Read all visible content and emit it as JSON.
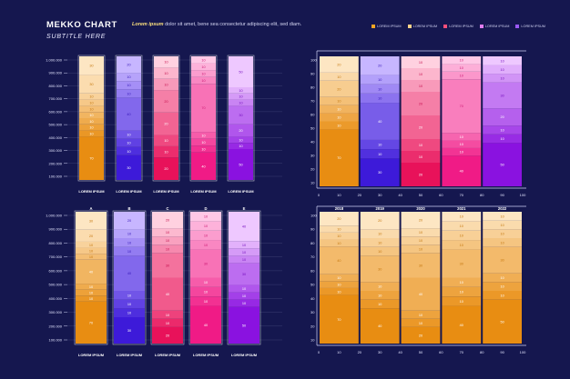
{
  "header": {
    "title": "MEKKO CHART",
    "subtitle": "SUBTITLE HERE",
    "desc_lead": "Lorem ipsum",
    "desc_rest": "dolor sit amet, bene sea consectetur adipiscing elit, sed diam."
  },
  "legend": [
    {
      "label": "LOREM IPSUM",
      "color": "#f5a623"
    },
    {
      "label": "LOREM IPSUM",
      "color": "#fcd38a"
    },
    {
      "label": "LOREM IPSUM",
      "color": "#ff4f7b"
    },
    {
      "label": "LOREM IPSUM",
      "color": "#e07cf0"
    },
    {
      "label": "LOREM IPSUM",
      "color": "#9b59f6"
    }
  ],
  "colors": {
    "background": "#15174f",
    "axis": "#cfd2f5",
    "orange_dark": "#e88d12",
    "orange_light": "#fde6c3",
    "violet_dark": "#3d1ad9",
    "violet_light": "#c7b6ff",
    "pink_dark": "#e8125a",
    "pink_light": "#ffd1e0",
    "magenta_dark": "#f01b86",
    "magenta_light": "#ffc8e6",
    "purple_dark": "#8a12e0",
    "purple_light": "#eec8ff"
  },
  "chart_data": [
    {
      "type": "bar",
      "id": "top-left",
      "categories": [
        "LOREM IPSUM",
        "LOREM IPSUM",
        "LOREM IPSUM",
        "LOREM IPSUM",
        "LOREM IPSUM"
      ],
      "yticks": [
        "1.000.000",
        "900.000",
        "800.000",
        "700.000",
        "600.000",
        "500.000",
        "400.000",
        "300.000",
        "200.000",
        "100.000"
      ],
      "palettes": [
        "orange",
        "violet",
        "pink",
        "magenta",
        "purple"
      ],
      "segments": [
        [
          "70",
          "10",
          "10",
          "10",
          "10",
          "10",
          "10",
          "10",
          "30",
          "30"
        ],
        [
          "30",
          "10",
          "10",
          "10",
          "40",
          "10",
          "10",
          "10",
          "20"
        ],
        [
          "20",
          "10",
          "10",
          "20",
          "20",
          "10",
          "10",
          "10"
        ],
        [
          "40",
          "10",
          "10",
          "10",
          "70",
          "10",
          "10",
          "10",
          "10"
        ],
        [
          "50",
          "10",
          "10",
          "20",
          "30",
          "10",
          "10",
          "10",
          "50"
        ]
      ]
    },
    {
      "type": "bar",
      "id": "top-right",
      "xticks": [
        "0",
        "10",
        "20",
        "30",
        "40",
        "50",
        "60",
        "70",
        "80",
        "90",
        "100"
      ],
      "yticks": [
        "100",
        "90",
        "80",
        "70",
        "60",
        "50",
        "40",
        "30",
        "20",
        "10"
      ],
      "palettes": [
        "orange",
        "violet",
        "pink",
        "magenta",
        "purple"
      ],
      "widths": [
        20,
        20,
        20,
        20,
        20
      ],
      "segments": [
        [
          "70",
          "10",
          "10",
          "10",
          "10",
          "20",
          "10",
          "20"
        ],
        [
          "30",
          "10",
          "10",
          "40",
          "10",
          "10",
          "10",
          "20"
        ],
        [
          "20",
          "10",
          "10",
          "20",
          "20",
          "10",
          "10",
          "10"
        ],
        [
          "40",
          "10",
          "10",
          "10",
          "70",
          "10",
          "10",
          "10"
        ],
        [
          "50",
          "10",
          "10",
          "20",
          "30",
          "10",
          "10",
          "10"
        ]
      ]
    },
    {
      "type": "bar",
      "id": "bottom-left",
      "categories": [
        "LOREM IPSUM",
        "LOREM IPSUM",
        "LOREM IPSUM",
        "LOREM IPSUM",
        "LOREM IPSUM"
      ],
      "toplabels": [
        "A",
        "B",
        "C",
        "D",
        "E"
      ],
      "yticks": [
        "1.000.000",
        "900.000",
        "800.000",
        "700.000",
        "600.000",
        "500.000",
        "400.000",
        "300.000",
        "200.000",
        "100.000"
      ],
      "palettes": [
        "orange",
        "violet",
        "pink",
        "magenta",
        "purple"
      ],
      "segments": [
        [
          "70",
          "10",
          "10",
          "10",
          "40",
          "10",
          "10",
          "10",
          "20",
          "30"
        ],
        [
          "30",
          "10",
          "10",
          "10",
          "40",
          "10",
          "10",
          "10",
          "20"
        ],
        [
          "20",
          "10",
          "10",
          "40",
          "30",
          "10",
          "10",
          "10",
          "20"
        ],
        [
          "40",
          "10",
          "10",
          "10",
          "30",
          "10",
          "10",
          "10",
          "10"
        ],
        [
          "50",
          "10",
          "10",
          "10",
          "30",
          "10",
          "10",
          "10",
          "40"
        ]
      ]
    },
    {
      "type": "bar",
      "id": "bottom-right",
      "toplabels": [
        "2018",
        "2019",
        "2020",
        "2021",
        "2022"
      ],
      "xticks": [
        "0",
        "10",
        "20",
        "30",
        "40",
        "50",
        "60",
        "70",
        "80",
        "90",
        "100"
      ],
      "yticks": [
        "100",
        "90",
        "80",
        "70",
        "60",
        "50",
        "40",
        "30",
        "20",
        "10"
      ],
      "palettes": [
        "orange",
        "orange",
        "orange",
        "orange",
        "orange"
      ],
      "widths": [
        20,
        20,
        20,
        20,
        20
      ],
      "segments": [
        [
          "70",
          "10",
          "10",
          "10",
          "40",
          "10",
          "10",
          "10",
          "20"
        ],
        [
          "40",
          "10",
          "10",
          "10",
          "30",
          "10",
          "10",
          "10",
          "20"
        ],
        [
          "20",
          "10",
          "10",
          "40",
          "30",
          "10",
          "10",
          "10",
          "20"
        ],
        [
          "40",
          "10",
          "10",
          "10",
          "30",
          "10",
          "10",
          "10",
          "10"
        ],
        [
          "50",
          "10",
          "10",
          "10",
          "30",
          "10",
          "10",
          "10",
          "10"
        ]
      ]
    }
  ]
}
